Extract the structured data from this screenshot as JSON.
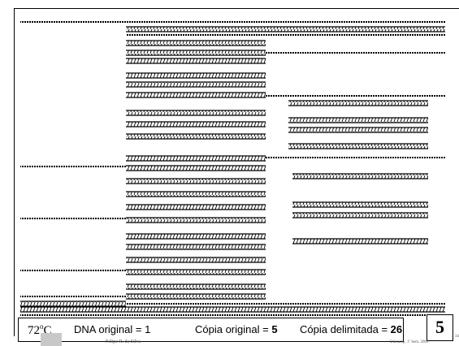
{
  "slide": {
    "temperature": "72",
    "temperature_unit_sup": "o",
    "temperature_unit": "C",
    "dna_original_label": "DNA original = ",
    "dna_original_value": "1",
    "copia_original_label": "Cópia original = ",
    "copia_original_value": "5",
    "copia_delimitada_label": "Cópia delimitada = ",
    "copia_delimitada_value": "26",
    "cycle_number": "5",
    "author": "Felipe R. da Silva",
    "institution": "Unicamp, 1º Sem. 2009",
    "page_number": "34"
  },
  "legend": {
    "strand_color": "#000000",
    "background_color": "#ffffff"
  }
}
